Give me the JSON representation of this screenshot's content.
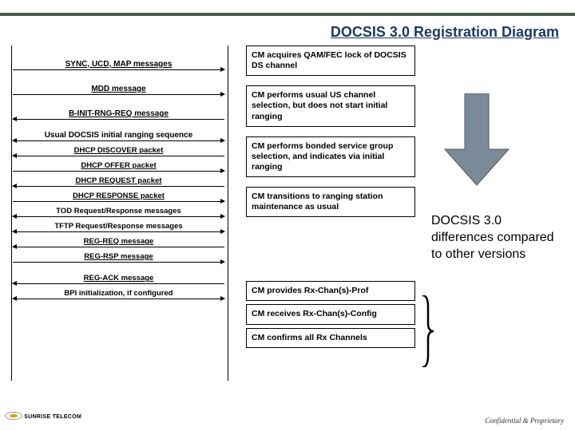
{
  "colors": {
    "topbar": "#3e5f4f",
    "title": "#1a3a66",
    "arrow_fill": "#7a8a99",
    "arrow_stroke": "#555"
  },
  "title": "DOCSIS 3.0 Registration Diagram",
  "messages": [
    {
      "label": "SYNC, UCD, MAP messages",
      "dir": "r",
      "big": true,
      "underline": true
    },
    {
      "label": "MDD message",
      "dir": "r",
      "big": true,
      "underline": true
    },
    {
      "label": "B-INIT-RNG-REQ message",
      "dir": "l",
      "big": true,
      "underline": true
    },
    {
      "label": "Usual DOCSIS initial ranging sequence",
      "dir": "both",
      "big": false
    },
    {
      "label": "DHCP DISCOVER  packet",
      "dir": "l",
      "sm": true,
      "underline": true
    },
    {
      "label": "DHCP OFFER packet",
      "dir": "r",
      "sm": true,
      "underline": true
    },
    {
      "label": "DHCP REQUEST packet",
      "dir": "l",
      "sm": true,
      "underline": true
    },
    {
      "label": "DHCP RESPONSE packet",
      "dir": "r",
      "sm": true,
      "underline": true
    },
    {
      "label": "TOD Request/Response messages",
      "dir": "both",
      "sm": true
    },
    {
      "label": "TFTP Request/Response messages",
      "dir": "both",
      "sm": true
    },
    {
      "label": "REG-REQ message",
      "dir": "l",
      "sm": true,
      "underline": true
    },
    {
      "label": "REG-RSP message",
      "dir": "r",
      "sm": true,
      "underline": true
    },
    {
      "label": "REG-ACK message",
      "dir": "l",
      "sm": true,
      "underline": true,
      "gap": true
    },
    {
      "label": "BPI initialization, if configured",
      "dir": "both",
      "sm": true
    }
  ],
  "descriptions": [
    "CM acquires QAM/FEC lock of DOCSIS DS channel",
    "CM performs usual US channel selection, but does not start initial ranging",
    "CM performs bonded service group selection, and indicates via initial ranging",
    "CM transitions to ranging station maintenance as usual",
    "CM provides Rx-Chan(s)-Prof",
    "CM receives Rx-Chan(s)-Config",
    "CM confirms all Rx Channels"
  ],
  "desc_gaps": [
    12,
    12,
    12,
    80,
    4,
    4,
    4
  ],
  "note": "DOCSIS 3.0 differences compared to other versions",
  "footer_logo": "SUNRISE TELECOM",
  "footer_cp": "Confidential & Proprietary"
}
